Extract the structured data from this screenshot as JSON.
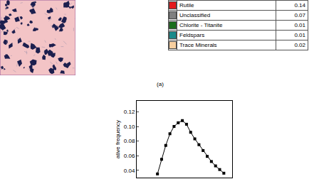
{
  "mineral_table": {
    "rows": [
      {
        "name": "Rutile",
        "color": "#e41a1c",
        "value": 0.14
      },
      {
        "name": "Unclassified",
        "color": "#808080",
        "value": 0.07
      },
      {
        "name": "Chlorite - Titanite",
        "color": "#1b6e1b",
        "value": 0.01
      },
      {
        "name": "Feldspars",
        "color": "#1a8a8a",
        "value": 0.01
      },
      {
        "name": "Trace Minerals",
        "color": "#f7cf9f",
        "value": 0.02
      }
    ]
  },
  "panel_label": "(a)",
  "chart_data": {
    "type": "line",
    "marker": "square",
    "color": "#000000",
    "ylabel": "ative frequency",
    "categories": [
      null,
      null,
      null,
      null,
      null,
      null,
      null,
      null,
      null,
      null,
      null,
      null,
      null,
      null,
      null,
      null,
      null
    ],
    "values": [
      0.035,
      0.055,
      0.074,
      0.09,
      0.1,
      0.105,
      0.108,
      0.103,
      0.092,
      0.083,
      0.075,
      0.067,
      0.059,
      0.052,
      0.046,
      0.041,
      0.036
    ],
    "ylim": [
      0.03,
      0.135
    ],
    "yticks": [
      0.04,
      0.06,
      0.08,
      {
        "value": 0.1,
        "label": "0.10"
      },
      0.12
    ],
    "tick_labels": "y",
    "grid": false
  }
}
